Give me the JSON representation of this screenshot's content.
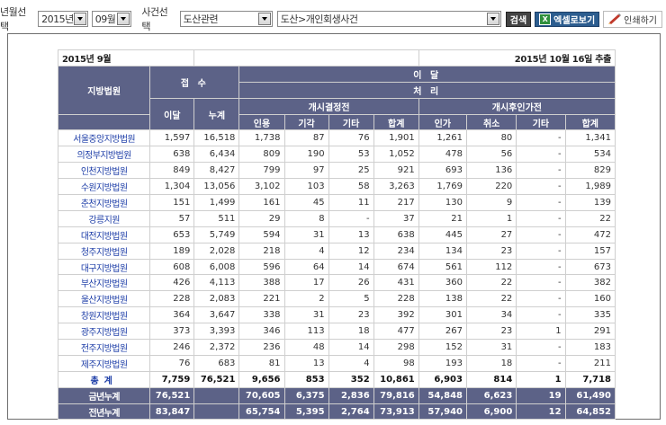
{
  "toolbar": {
    "year_month_label": "년월선택",
    "year_value": "2015년",
    "month_value": "09월",
    "case_label": "사건선택",
    "case_category": "도산관련",
    "case_type": "도산>개인회생사건",
    "search_button": "검색",
    "excel_button": "엑셀로보기",
    "print_button": "인쇄하기"
  },
  "report": {
    "period": "2015년 9월",
    "extracted": "2015년 10월 16일 추출"
  },
  "headers": {
    "court": "지방법원",
    "received": "접 수",
    "disposed": "이 달",
    "processing": "처 리",
    "start_decision": "개시결정전",
    "after_start": "개시후인가전",
    "this_month": "이달",
    "cumulative": "누계",
    "cols_a": [
      "인용",
      "기각",
      "기타",
      "합계"
    ],
    "cols_b": [
      "인가",
      "취소",
      "기타",
      "합계"
    ]
  },
  "rows": [
    {
      "name": "서울중앙지방법원",
      "v": [
        "1,597",
        "16,518",
        "1,738",
        "87",
        "76",
        "1,901",
        "1,261",
        "80",
        "-",
        "1,341"
      ]
    },
    {
      "name": "의정부지방법원",
      "v": [
        "638",
        "6,434",
        "809",
        "190",
        "53",
        "1,052",
        "478",
        "56",
        "-",
        "534"
      ]
    },
    {
      "name": "인천지방법원",
      "v": [
        "849",
        "8,427",
        "799",
        "97",
        "25",
        "921",
        "693",
        "136",
        "-",
        "829"
      ]
    },
    {
      "name": "수원지방법원",
      "v": [
        "1,304",
        "13,056",
        "3,102",
        "103",
        "58",
        "3,263",
        "1,769",
        "220",
        "-",
        "1,989"
      ]
    },
    {
      "name": "춘천지방법원",
      "v": [
        "151",
        "1,499",
        "161",
        "45",
        "11",
        "217",
        "130",
        "9",
        "-",
        "139"
      ]
    },
    {
      "name": "강릉지원",
      "v": [
        "57",
        "511",
        "29",
        "8",
        "-",
        "37",
        "21",
        "1",
        "-",
        "22"
      ]
    },
    {
      "name": "대전지방법원",
      "v": [
        "653",
        "5,749",
        "594",
        "31",
        "13",
        "638",
        "445",
        "27",
        "-",
        "472"
      ]
    },
    {
      "name": "청주지방법원",
      "v": [
        "189",
        "2,028",
        "218",
        "4",
        "12",
        "234",
        "134",
        "23",
        "-",
        "157"
      ]
    },
    {
      "name": "대구지방법원",
      "v": [
        "608",
        "6,008",
        "596",
        "64",
        "14",
        "674",
        "561",
        "112",
        "-",
        "673"
      ]
    },
    {
      "name": "부산지방법원",
      "v": [
        "426",
        "4,113",
        "388",
        "17",
        "26",
        "431",
        "360",
        "22",
        "-",
        "382"
      ]
    },
    {
      "name": "울산지방법원",
      "v": [
        "228",
        "2,083",
        "221",
        "2",
        "5",
        "228",
        "138",
        "22",
        "-",
        "160"
      ]
    },
    {
      "name": "창원지방법원",
      "v": [
        "364",
        "3,647",
        "338",
        "31",
        "23",
        "392",
        "301",
        "34",
        "-",
        "335"
      ]
    },
    {
      "name": "광주지방법원",
      "v": [
        "373",
        "3,393",
        "346",
        "113",
        "18",
        "477",
        "267",
        "23",
        "1",
        "291"
      ]
    },
    {
      "name": "전주지방법원",
      "v": [
        "246",
        "2,372",
        "236",
        "48",
        "14",
        "298",
        "152",
        "31",
        "-",
        "183"
      ]
    },
    {
      "name": "제주지방법원",
      "v": [
        "76",
        "683",
        "81",
        "13",
        "4",
        "98",
        "193",
        "18",
        "-",
        "211"
      ]
    }
  ],
  "total": {
    "name": "총계",
    "v": [
      "7,759",
      "76,521",
      "9,656",
      "853",
      "352",
      "10,861",
      "6,903",
      "814",
      "1",
      "7,718"
    ]
  },
  "ytd": {
    "name": "금년누계",
    "v": [
      "76,521",
      "",
      "70,605",
      "6,375",
      "2,836",
      "79,816",
      "54,848",
      "6,623",
      "19",
      "61,490"
    ]
  },
  "prev_year": {
    "name": "전년누계",
    "v": [
      "83,847",
      "",
      "65,754",
      "5,395",
      "2,764",
      "73,913",
      "57,940",
      "6,900",
      "12",
      "64,852"
    ]
  }
}
